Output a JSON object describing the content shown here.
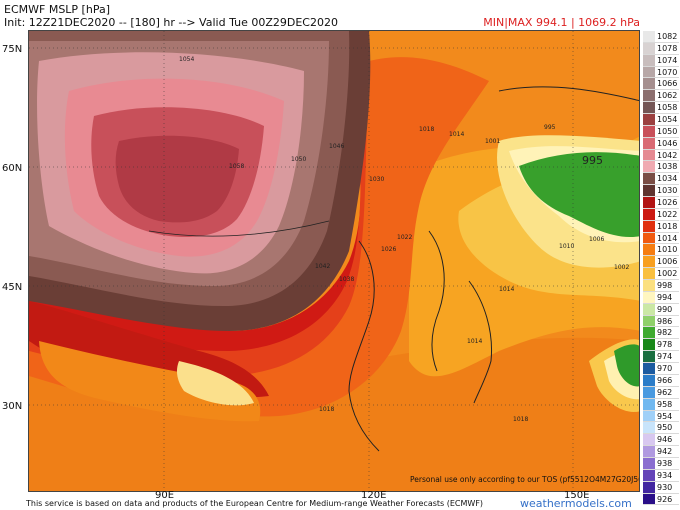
{
  "header": {
    "title": "ECMWF MSLP [hPa]",
    "subtitle": "Init: 12Z21DEC2020 -- [180] hr --> Valid Tue 00Z29DEC2020",
    "minmax": "MIN|MAX 994.1 | 1069.2 hPa"
  },
  "axes": {
    "lat_labels": [
      "75N",
      "60N",
      "45N",
      "30N"
    ],
    "lon_labels": [
      "90E",
      "120E",
      "150E"
    ]
  },
  "map_labels": {
    "isobars": [
      "1054",
      "1050",
      "1058",
      "1046",
      "1042",
      "1038",
      "1030",
      "1026",
      "1022",
      "1018",
      "1014",
      "1010",
      "1006",
      "1002",
      "1001",
      "995",
      "1018",
      "1014",
      "1018",
      "1014"
    ],
    "low_center": "995",
    "tos_notice": "Personal use only according to our TOS (pf5512O4M27G20J563)"
  },
  "legend": {
    "levels": [
      "1082",
      "1078",
      "1074",
      "1070",
      "1066",
      "1062",
      "1058",
      "1054",
      "1050",
      "1046",
      "1042",
      "1038",
      "1034",
      "1030",
      "1026",
      "1022",
      "1018",
      "1014",
      "1010",
      "1006",
      "1002",
      "998",
      "994",
      "990",
      "986",
      "982",
      "978",
      "974",
      "970",
      "966",
      "962",
      "958",
      "954",
      "950",
      "946",
      "942",
      "938",
      "934",
      "930",
      "926"
    ],
    "colors": [
      "#e8e8e8",
      "#d8d2d2",
      "#c8bdbd",
      "#b7a7a7",
      "#a58f8f",
      "#8c6f6f",
      "#745656",
      "#9b4040",
      "#c8505a",
      "#d96a74",
      "#e58a92",
      "#f0aab2",
      "#7a4d45",
      "#5f3430",
      "#b11313",
      "#cc1a12",
      "#e03010",
      "#f05a10",
      "#f57d12",
      "#f8a020",
      "#f9c040",
      "#fbe080",
      "#fff6c0",
      "#cbe8a5",
      "#8fd06a",
      "#3faa30",
      "#188818",
      "#1a6e40",
      "#1b5aa0",
      "#2b7cc8",
      "#4a9ae0",
      "#70b8f0",
      "#a0d0f8",
      "#c8e4fb",
      "#d8c8f0",
      "#b09ae0",
      "#8a6ed0",
      "#6444b8",
      "#4226a0",
      "#2a0f88"
    ]
  },
  "footer": {
    "credit": "This service is based on data and products of the European Centre for Medium-range Weather Forecasts (ECMWF)",
    "brand": "weathermodels.com"
  }
}
